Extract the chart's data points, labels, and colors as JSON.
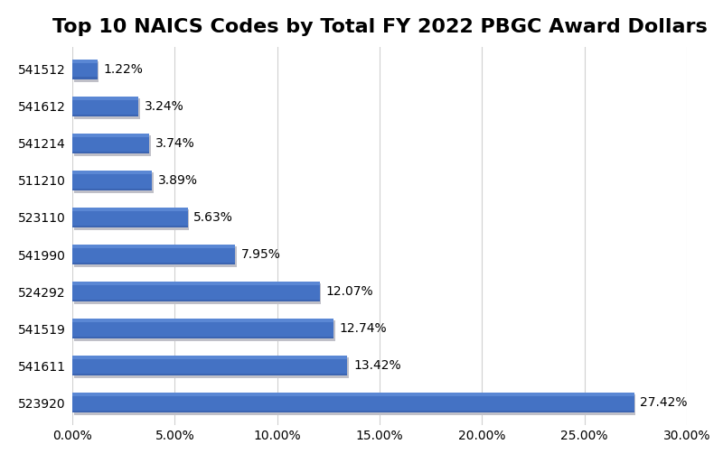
{
  "title": "Top 10 NAICS Codes by Total FY 2022 PBGC Award Dollars",
  "categories": [
    "523920",
    "541611",
    "541519",
    "524292",
    "541990",
    "523110",
    "511210",
    "541214",
    "541612",
    "541512"
  ],
  "values": [
    27.42,
    13.42,
    12.74,
    12.07,
    7.95,
    5.63,
    3.89,
    3.74,
    3.24,
    1.22
  ],
  "labels": [
    "27.42%",
    "13.42%",
    "12.74%",
    "12.07%",
    "7.95%",
    "5.63%",
    "3.89%",
    "3.74%",
    "3.24%",
    "1.22%"
  ],
  "bar_color_main": "#4472C4",
  "bar_color_light": "#6A96E0",
  "bar_color_dark": "#2E5097",
  "bar_color_shadow": "#C0C0C8",
  "background_color": "#FFFFFF",
  "title_fontsize": 16,
  "label_fontsize": 10,
  "tick_fontsize": 10,
  "xlim": [
    0,
    30
  ],
  "xticks": [
    0,
    5,
    10,
    15,
    20,
    25,
    30
  ],
  "xtick_labels": [
    "0.00%",
    "5.00%",
    "10.00%",
    "15.00%",
    "20.00%",
    "25.00%",
    "30.00%"
  ],
  "bar_height": 0.55,
  "grid_color": "#D0D0D0"
}
